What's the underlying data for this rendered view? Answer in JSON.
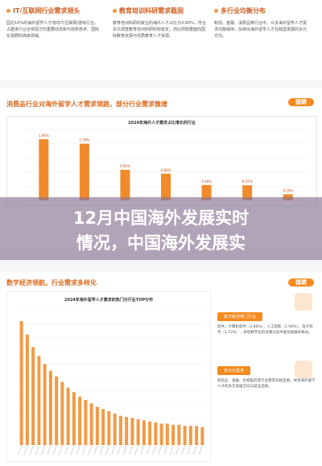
{
  "top": {
    "col1": {
      "title": "IT/互联网行业需求领头",
      "text": "园达10%的海外留学人才流向IT/互联网/游戏行业，占据该行业全体招才的重要动态和与技新技术、国际化视野的高级领域。"
    },
    "col2": {
      "title": "教育培训科研需求稳固",
      "text": "教育培训科研的就业的海外人才占比为3.80%，符合本次调查教育培训科研的较稳定，而比例较要面向国际教育资源与优质教育人才资源。"
    },
    "col3": {
      "title": "多行业均衡分布",
      "text": "制造、金融、消费品等行业中，众多海外留学人才需求均衡保持，反映出海外留学人才在我国发展的多元方向。"
    }
  },
  "mid": {
    "title": "消费品行业对海外留学人才需求领跑，部分行业需求微增",
    "logo": "猎聘",
    "chart": {
      "title": "2024年海外人才需求占比增长的行业",
      "labels": [
        "1.90%",
        "1.76%",
        "0.95%",
        "0.83%",
        "0.48%",
        "0.47%",
        "0.19%"
      ]
    }
  },
  "banner": {
    "line1": "12月中国海外发展实时",
    "line2": "情况，中国海外发展实"
  },
  "low": {
    "title": "数字经济领航，行业需求多样化",
    "logo": "猎聘",
    "chart": {
      "title": "2024年海外留学人才需求的热门分行业TOP分布"
    },
    "tag1": "数字经济热门行业",
    "text1": "软件、计算机软件（3.80%），人工智能（1.96%），电子商务（1.72%）…体现数字化的浪潮与技术驱动发展的格局。",
    "tag2": "多元化需求",
    "text2": "制造业、金融、生物医药等行业需求同样显著，体现海外留学人才的多元发展方向与就业选择。"
  },
  "chart_data": [
    {
      "type": "bar",
      "title": "2024年海外人才需求占比增长的行业",
      "categories": [
        "",
        "",
        "",
        "",
        "",
        "",
        ""
      ],
      "values": [
        1.9,
        1.76,
        0.95,
        0.83,
        0.48,
        0.47,
        0.19
      ],
      "ylim": [
        0,
        2.2
      ]
    },
    {
      "type": "bar",
      "title": "2024年海外留学人才需求的热门分行业TOP分布",
      "values": [
        11.0,
        9.8,
        8.7,
        7.9,
        7.2,
        6.6,
        6.1,
        5.6,
        5.1,
        4.7,
        4.3,
        4.0,
        3.7,
        3.4,
        3.2,
        3.0,
        2.8,
        2.6,
        2.5,
        2.4,
        2.3,
        2.2,
        2.1,
        2.0,
        1.9,
        1.9,
        1.8,
        1.8,
        1.7,
        1.7,
        1.7,
        1.6
      ],
      "ylim": [
        0,
        12
      ]
    }
  ]
}
